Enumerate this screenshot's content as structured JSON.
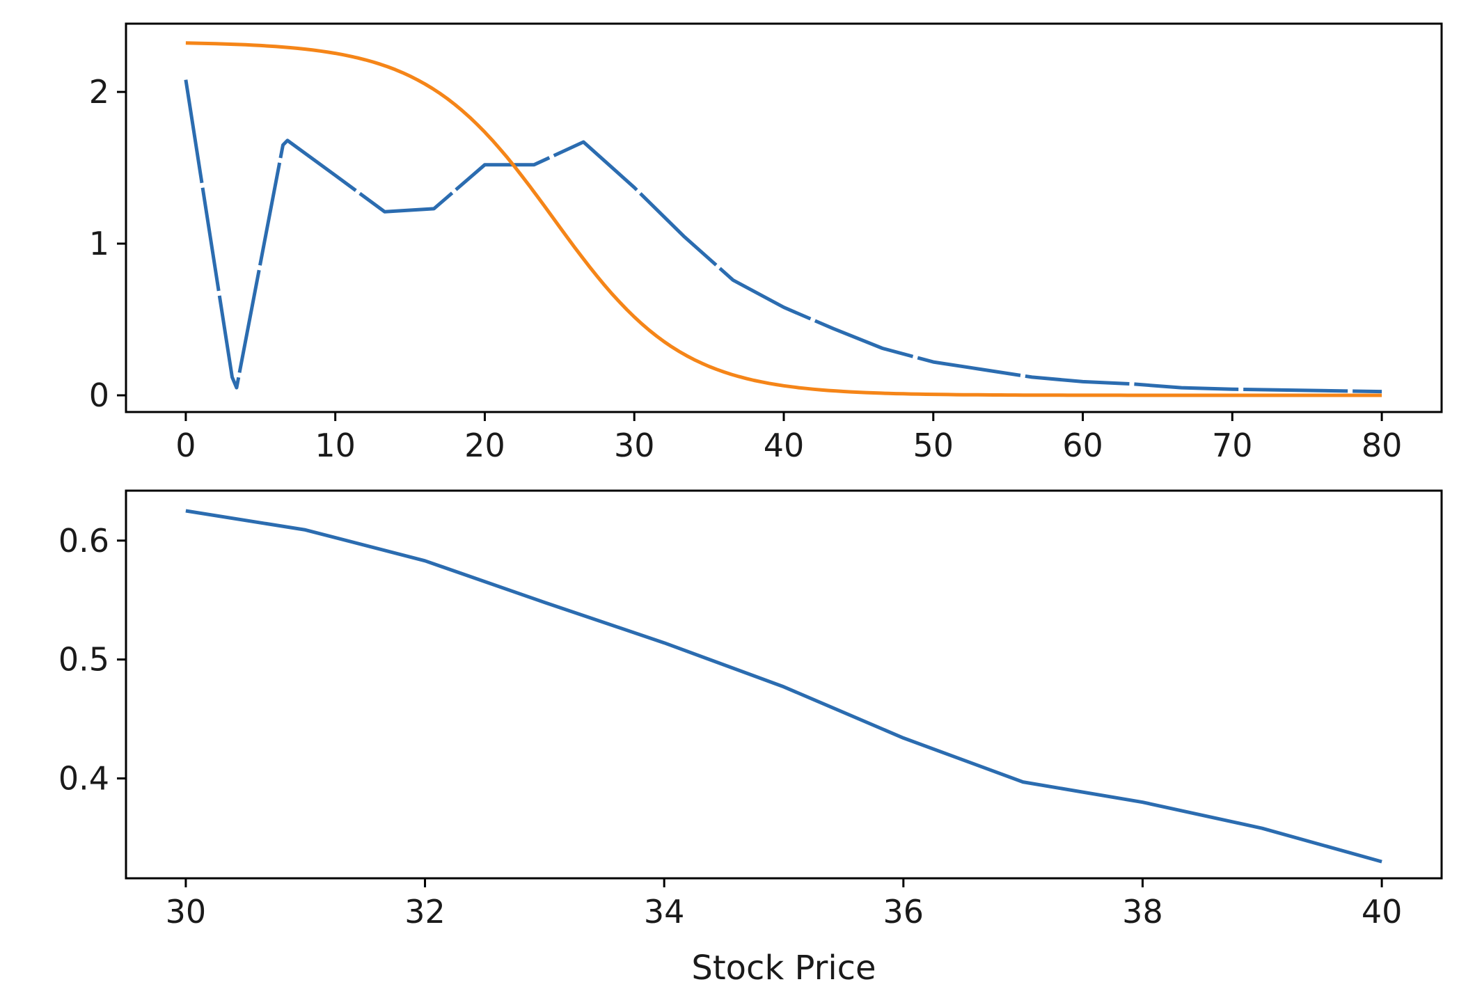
{
  "chart_data": [
    {
      "type": "line",
      "title": "",
      "xlabel": "",
      "ylabel": "",
      "xlim": [
        -4,
        84
      ],
      "ylim": [
        -0.11,
        2.45
      ],
      "xticks": [
        0,
        10,
        20,
        30,
        40,
        50,
        60,
        70,
        80
      ],
      "yticks": [
        0,
        1,
        2
      ],
      "grid": false,
      "series": [
        {
          "color": "#2b6cb0",
          "dashed": true,
          "x": [
            0,
            3.1,
            3.4,
            6.5,
            6.8,
            10,
            13.3,
            16.6,
            20,
            23.3,
            26.6,
            30,
            33.3,
            36.6,
            40,
            43.3,
            46.6,
            50,
            53.3,
            56.6,
            60,
            63.3,
            66.6,
            70,
            73.3,
            76.6,
            80
          ],
          "y": [
            2.08,
            0.12,
            0.05,
            1.65,
            1.68,
            1.45,
            1.21,
            1.23,
            1.52,
            1.52,
            1.67,
            1.37,
            1.05,
            0.76,
            0.58,
            0.44,
            0.31,
            0.22,
            0.17,
            0.12,
            0.09,
            0.075,
            0.05,
            0.04,
            0.035,
            0.03,
            0.025
          ]
        },
        {
          "color": "#f58518",
          "dashed": false,
          "curve": "logistic",
          "params": {
            "upper": 2.33,
            "midpoint": 24.6,
            "scale": 4.3
          },
          "x_range": [
            0,
            80
          ]
        }
      ]
    },
    {
      "type": "line",
      "title": "",
      "xlabel": "Stock Price",
      "ylabel": "",
      "xlim": [
        29.5,
        40.5
      ],
      "ylim": [
        0.316,
        0.642
      ],
      "xticks": [
        30,
        32,
        34,
        36,
        38,
        40
      ],
      "yticks": [
        0.4,
        0.5,
        0.6
      ],
      "grid": false,
      "series": [
        {
          "color": "#2b6cb0",
          "dashed": false,
          "x": [
            30,
            31,
            32,
            33,
            34,
            35,
            36,
            37,
            38,
            39,
            40
          ],
          "y": [
            0.625,
            0.609,
            0.583,
            0.548,
            0.514,
            0.477,
            0.434,
            0.397,
            0.38,
            0.358,
            0.33
          ]
        }
      ]
    }
  ]
}
